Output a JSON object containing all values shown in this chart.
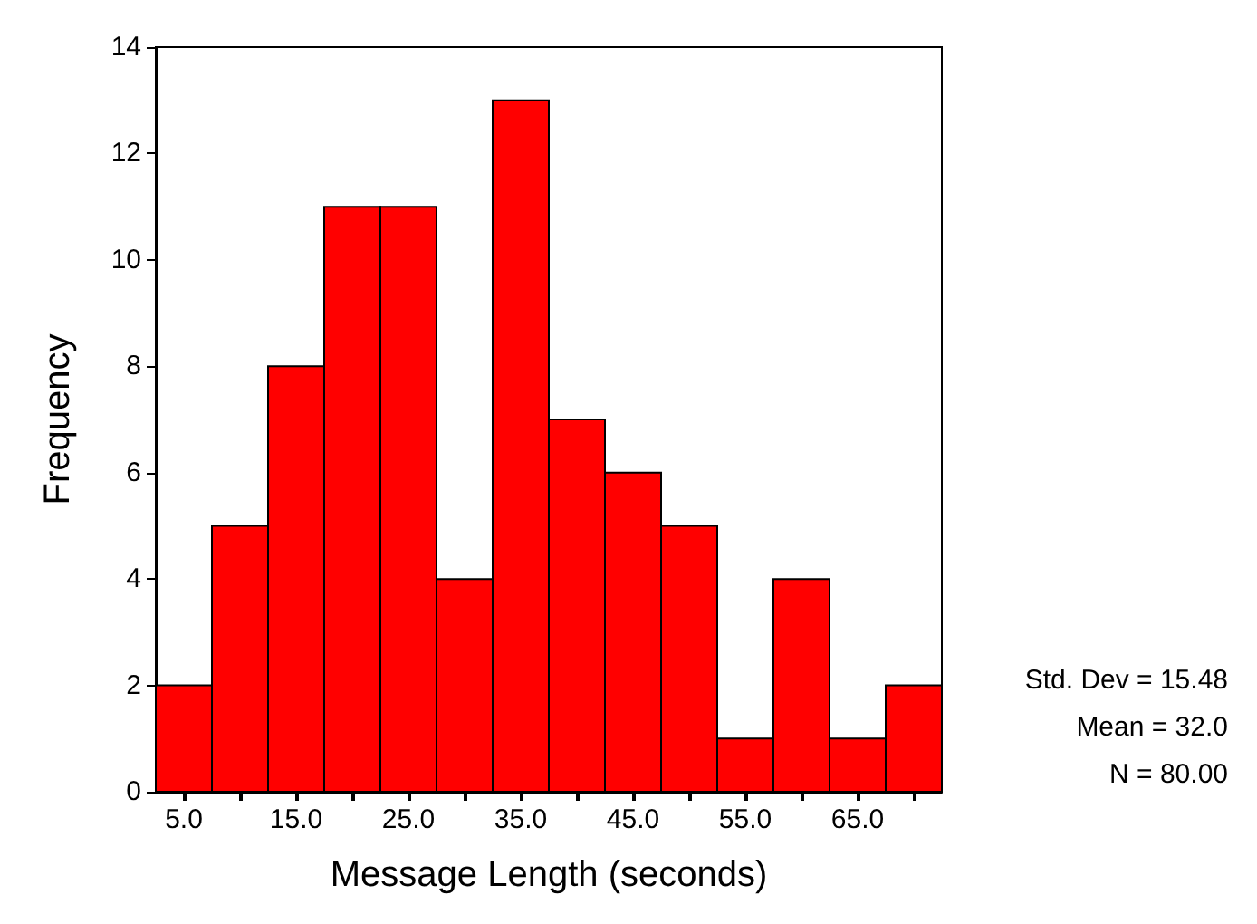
{
  "chart_data": {
    "type": "histogram",
    "xlabel": "Message Length (seconds)",
    "ylabel": "Frequency",
    "bins": [
      2.5,
      7.5,
      12.5,
      17.5,
      22.5,
      27.5,
      32.5,
      37.5,
      42.5,
      47.5,
      52.5,
      57.5,
      62.5,
      67.5,
      72.5
    ],
    "values": [
      2,
      5,
      8,
      11,
      11,
      4,
      13,
      7,
      6,
      5,
      1,
      4,
      1,
      2
    ],
    "color": "#ff0000",
    "xlim": [
      2.5,
      72.5
    ],
    "xticks": [
      {
        "value": 5,
        "label": "5.0"
      },
      {
        "value": 10,
        "label": null
      },
      {
        "value": 15,
        "label": "15.0"
      },
      {
        "value": 20,
        "label": null
      },
      {
        "value": 25,
        "label": "25.0"
      },
      {
        "value": 30,
        "label": null
      },
      {
        "value": 35,
        "label": "35.0"
      },
      {
        "value": 40,
        "label": null
      },
      {
        "value": 45,
        "label": "45.0"
      },
      {
        "value": 50,
        "label": null
      },
      {
        "value": 55,
        "label": "55.0"
      },
      {
        "value": 60,
        "label": null
      },
      {
        "value": 65,
        "label": "65.0"
      },
      {
        "value": 70,
        "label": null
      }
    ],
    "ylim": [
      0,
      14
    ],
    "yticks": [
      0,
      2,
      4,
      6,
      8,
      10,
      12,
      14
    ],
    "grid": false,
    "annotations": [
      "Std. Dev = 15.48",
      "Mean = 32.0",
      "N = 80.00"
    ]
  }
}
